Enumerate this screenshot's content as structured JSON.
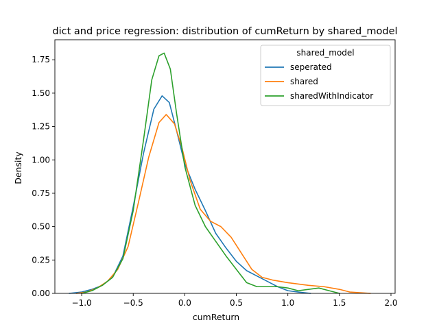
{
  "chart_data": {
    "type": "line",
    "title": "dict and price regression: distribution of cumReturn by shared_model",
    "xlabel": "cumReturn",
    "ylabel": "Density",
    "xlim": [
      -1.26,
      2.04
    ],
    "ylim": [
      0,
      1.9
    ],
    "xticks": [
      -1.0,
      -0.5,
      0.0,
      0.5,
      1.0,
      1.5,
      2.0
    ],
    "xtick_labels": [
      "−1.0",
      "−0.5",
      "0.0",
      "0.5",
      "1.0",
      "1.5",
      "2.0"
    ],
    "yticks": [
      0.0,
      0.25,
      0.5,
      0.75,
      1.0,
      1.25,
      1.5,
      1.75
    ],
    "ytick_labels": [
      "0.00",
      "0.25",
      "0.50",
      "0.75",
      "1.00",
      "1.25",
      "1.50",
      "1.75"
    ],
    "grid": false,
    "legend": {
      "title": "shared_model",
      "placement": "top-right"
    },
    "series": [
      {
        "name": "seperated",
        "color": "#1f77b4",
        "points": [
          [
            -1.12,
            0.0
          ],
          [
            -1.0,
            0.01
          ],
          [
            -0.9,
            0.03
          ],
          [
            -0.8,
            0.06
          ],
          [
            -0.7,
            0.12
          ],
          [
            -0.6,
            0.28
          ],
          [
            -0.5,
            0.65
          ],
          [
            -0.4,
            1.05
          ],
          [
            -0.3,
            1.38
          ],
          [
            -0.22,
            1.48
          ],
          [
            -0.15,
            1.43
          ],
          [
            -0.08,
            1.22
          ],
          [
            0.0,
            0.97
          ],
          [
            0.1,
            0.78
          ],
          [
            0.2,
            0.62
          ],
          [
            0.3,
            0.45
          ],
          [
            0.4,
            0.34
          ],
          [
            0.5,
            0.24
          ],
          [
            0.6,
            0.17
          ],
          [
            0.7,
            0.13
          ],
          [
            0.8,
            0.09
          ],
          [
            0.9,
            0.05
          ],
          [
            1.0,
            0.02
          ],
          [
            1.1,
            0.01
          ],
          [
            1.22,
            0.0
          ]
        ]
      },
      {
        "name": "shared",
        "color": "#ff7f0e",
        "points": [
          [
            -1.05,
            0.0
          ],
          [
            -0.95,
            0.01
          ],
          [
            -0.85,
            0.04
          ],
          [
            -0.75,
            0.09
          ],
          [
            -0.65,
            0.18
          ],
          [
            -0.55,
            0.35
          ],
          [
            -0.45,
            0.68
          ],
          [
            -0.35,
            1.02
          ],
          [
            -0.25,
            1.28
          ],
          [
            -0.18,
            1.34
          ],
          [
            -0.1,
            1.27
          ],
          [
            -0.03,
            1.1
          ],
          [
            0.05,
            0.85
          ],
          [
            0.15,
            0.63
          ],
          [
            0.25,
            0.54
          ],
          [
            0.35,
            0.5
          ],
          [
            0.45,
            0.42
          ],
          [
            0.55,
            0.3
          ],
          [
            0.65,
            0.18
          ],
          [
            0.75,
            0.12
          ],
          [
            0.85,
            0.1
          ],
          [
            1.0,
            0.08
          ],
          [
            1.2,
            0.06
          ],
          [
            1.35,
            0.05
          ],
          [
            1.5,
            0.03
          ],
          [
            1.6,
            0.01
          ],
          [
            1.8,
            0.0
          ]
        ]
      },
      {
        "name": "sharedWithIndicator",
        "color": "#2ca02c",
        "points": [
          [
            -1.0,
            0.0
          ],
          [
            -0.9,
            0.02
          ],
          [
            -0.8,
            0.06
          ],
          [
            -0.7,
            0.12
          ],
          [
            -0.6,
            0.26
          ],
          [
            -0.5,
            0.62
          ],
          [
            -0.4,
            1.15
          ],
          [
            -0.32,
            1.6
          ],
          [
            -0.25,
            1.78
          ],
          [
            -0.2,
            1.8
          ],
          [
            -0.14,
            1.68
          ],
          [
            -0.08,
            1.35
          ],
          [
            0.0,
            0.95
          ],
          [
            0.1,
            0.66
          ],
          [
            0.2,
            0.5
          ],
          [
            0.3,
            0.39
          ],
          [
            0.4,
            0.28
          ],
          [
            0.5,
            0.18
          ],
          [
            0.6,
            0.08
          ],
          [
            0.7,
            0.05
          ],
          [
            0.8,
            0.05
          ],
          [
            0.9,
            0.05
          ],
          [
            1.0,
            0.04
          ],
          [
            1.1,
            0.02
          ],
          [
            1.2,
            0.03
          ],
          [
            1.3,
            0.04
          ],
          [
            1.4,
            0.02
          ],
          [
            1.5,
            0.0
          ]
        ]
      }
    ]
  }
}
